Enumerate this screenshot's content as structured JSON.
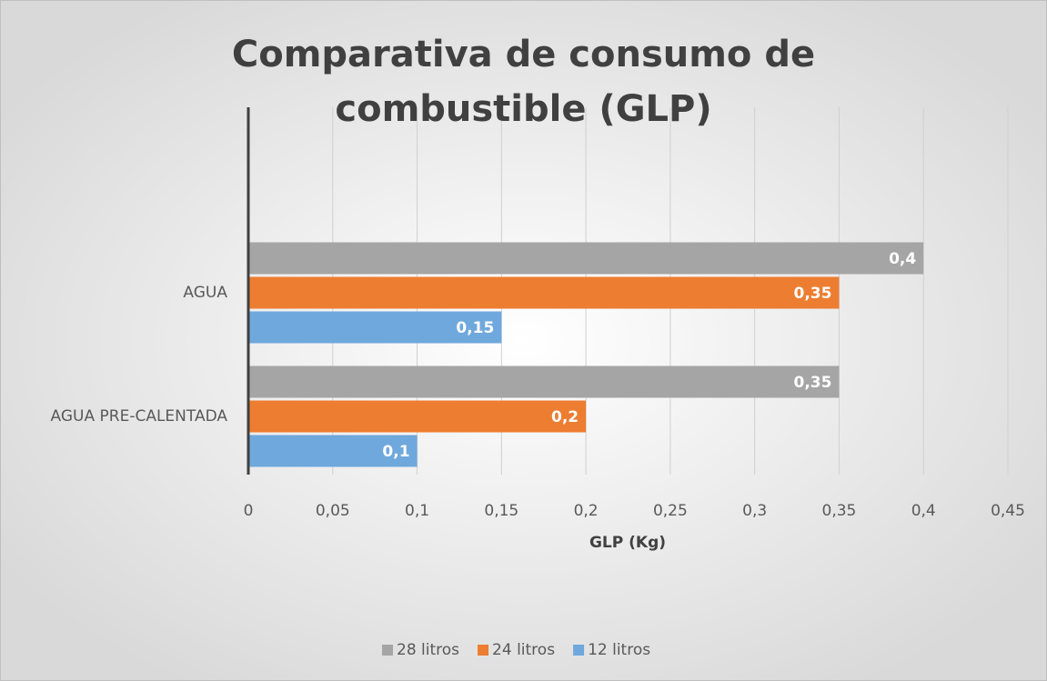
{
  "chart_data": {
    "type": "bar",
    "orientation": "horizontal",
    "title": "Comparativa de consumo de combustible (GLP)",
    "x_label": "GLP (Kg)",
    "categories": [
      "AGUA",
      "AGUA PRE-CALENTADA"
    ],
    "series": [
      {
        "name": "28 litros",
        "color": "#a5a5a5",
        "values": [
          0.4,
          0.35
        ],
        "value_labels": [
          "0,4",
          "0,35"
        ]
      },
      {
        "name": "24 litros",
        "color": "#ed7d31",
        "values": [
          0.35,
          0.2
        ],
        "value_labels": [
          "0,35",
          "0,2"
        ]
      },
      {
        "name": "12 litros",
        "color": "#6fa8dc",
        "values": [
          0.15,
          0.1
        ],
        "value_labels": [
          "0,15",
          "0,1"
        ]
      }
    ],
    "xlim": [
      0,
      0.45
    ],
    "xticks": [
      0,
      {
        "value": 0.05,
        "label": "0,05"
      },
      {
        "value": 0.1,
        "label": "0,1"
      },
      {
        "value": 0.15,
        "label": "0,15"
      },
      {
        "value": 0.2,
        "label": "0,2"
      },
      {
        "value": 0.25,
        "label": "0,25"
      },
      {
        "value": 0.3,
        "label": "0,3"
      },
      {
        "value": 0.35,
        "label": "0,35"
      },
      {
        "value": 0.4,
        "label": "0,4"
      },
      {
        "value": 0.45,
        "label": "0,45"
      }
    ],
    "grid": true,
    "legend": "bottom"
  }
}
